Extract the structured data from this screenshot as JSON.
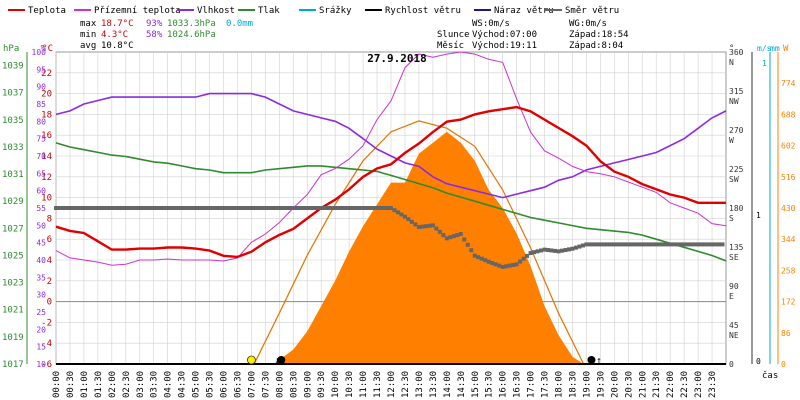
{
  "legend": [
    {
      "label": "Teplota",
      "color": "#e00000"
    },
    {
      "label": "Přízemní teplota",
      "color": "#cc33cc"
    },
    {
      "label": "Vlhkost",
      "color": "#8a2be2"
    },
    {
      "label": "Tlak",
      "color": "#2e8b2e"
    },
    {
      "label": "Srážky",
      "color": "#00aacc"
    },
    {
      "label": "Rychlost větru",
      "color": "#000000"
    },
    {
      "label": "Náraz větru",
      "color": "#1a1a8c"
    },
    {
      "label": "Směr větru",
      "color": "#666666"
    }
  ],
  "stats": {
    "max": {
      "label": "max",
      "temp": "18.7°C",
      "hum": "93%",
      "press": "1033.3hPa",
      "rain": "0.0mm"
    },
    "min": {
      "label": "min",
      "temp": "4.3°C",
      "hum": "58%",
      "press": "1024.6hPa"
    },
    "avg": {
      "label": "avg",
      "temp": "10.8°C"
    }
  },
  "wind_stats": {
    "ws": "WS:0m/s",
    "wg": "WG:0m/s"
  },
  "sun": {
    "label": "Slunce",
    "rise": "Východ:07:00",
    "set": "Západ:18:54"
  },
  "moon": {
    "label": "Měsíc",
    "rise": "Východ:19:11",
    "set": "Západ:8:04"
  },
  "colors": {
    "temp": "#e00000",
    "ground": "#cc33cc",
    "hum": "#8a2be2",
    "press": "#2e8b2e",
    "dir": "#666666",
    "solar": "#ff8000",
    "solar_line": "#e67300",
    "grid": "#d0d0d0",
    "axis_blue": "#00aacc"
  },
  "chart_data": {
    "type": "line",
    "title": "27.9.2018",
    "x_label": "čas",
    "x_ticks": [
      "00:00",
      "00:30",
      "01:00",
      "01:30",
      "02:00",
      "02:30",
      "03:00",
      "03:30",
      "04:00",
      "04:30",
      "05:00",
      "05:30",
      "06:00",
      "06:30",
      "07:00",
      "07:30",
      "08:00",
      "08:30",
      "09:00",
      "09:30",
      "10:00",
      "10:30",
      "11:00",
      "11:30",
      "12:00",
      "12:30",
      "13:00",
      "13:30",
      "14:00",
      "14:30",
      "15:00",
      "15:30",
      "16:00",
      "16:30",
      "17:00",
      "17:30",
      "18:00",
      "18:30",
      "19:00",
      "19:30",
      "20:00",
      "20:30",
      "21:00",
      "21:30",
      "22:00",
      "22:30",
      "23:00",
      "23:30"
    ],
    "axes": {
      "hpa": {
        "label": "hPa",
        "ticks": [
          "1017",
          "1019",
          "1021",
          "1023",
          "1025",
          "1027",
          "1029",
          "1031",
          "1033",
          "1035",
          "1037",
          "1039"
        ],
        "range": [
          1017,
          1040
        ]
      },
      "percent": {
        "label": "%",
        "ticks": [
          "10",
          "15",
          "20",
          "25",
          "30",
          "35",
          "40",
          "45",
          "50",
          "55",
          "60",
          "65",
          "70",
          "75",
          "80",
          "85",
          "90",
          "95",
          "100"
        ],
        "range": [
          10,
          100
        ]
      },
      "celsius": {
        "label": "°C",
        "ticks": [
          "-6",
          "-4",
          "-2",
          "0",
          "2",
          "4",
          "6",
          "8",
          "10",
          "12",
          "14",
          "16",
          "18",
          "20",
          "22"
        ],
        "range": [
          -6,
          24
        ]
      },
      "direction": {
        "label": "°",
        "ticks": [
          "0",
          "45 NE",
          "90 E",
          "135 SE",
          "180 S",
          "225 SW",
          "270 W",
          "315 NW",
          "360 N"
        ],
        "range": [
          0,
          360
        ]
      },
      "wind": {
        "label": "m/s",
        "ticks": [
          "0",
          "1"
        ]
      },
      "rain": {
        "label": "mm",
        "ticks": [
          "0",
          "1"
        ]
      },
      "solar": {
        "label": "W",
        "ticks": [
          "0",
          "86",
          "172",
          "258",
          "344",
          "430",
          "516",
          "602",
          "688",
          "774"
        ],
        "range": [
          0,
          860
        ]
      }
    },
    "series": [
      {
        "name": "Teplota",
        "unit": "°C",
        "x": [
          0,
          0.5,
          1,
          1.5,
          2,
          2.5,
          3,
          3.5,
          4,
          4.5,
          5,
          5.5,
          6,
          6.5,
          7,
          7.5,
          8,
          8.5,
          9,
          9.5,
          10,
          10.5,
          11,
          11.5,
          12,
          12.5,
          13,
          13.5,
          14,
          14.5,
          15,
          15.5,
          16,
          16.5,
          17,
          17.5,
          18,
          18.5,
          19,
          19.5,
          20,
          20.5,
          21,
          21.5,
          22,
          22.5,
          23,
          23.5,
          24
        ],
        "y": [
          7.2,
          6.8,
          6.6,
          5.8,
          5.0,
          5.0,
          5.1,
          5.1,
          5.2,
          5.2,
          5.1,
          4.9,
          4.4,
          4.3,
          4.8,
          5.7,
          6.4,
          7.0,
          8.0,
          9.0,
          9.8,
          10.8,
          12.0,
          12.8,
          13.2,
          14.3,
          15.2,
          16.3,
          17.3,
          17.5,
          18.0,
          18.3,
          18.5,
          18.7,
          18.3,
          17.5,
          16.7,
          15.9,
          15.0,
          13.5,
          12.5,
          12.0,
          11.3,
          10.8,
          10.3,
          10.0,
          9.5,
          9.5,
          9.5
        ]
      },
      {
        "name": "Přízemní teplota",
        "unit": "°C",
        "x": [
          0,
          0.5,
          1,
          1.5,
          2,
          2.5,
          3,
          3.5,
          4,
          4.5,
          5,
          5.5,
          6,
          6.5,
          7,
          7.5,
          8,
          8.5,
          9,
          9.5,
          10,
          10.5,
          11,
          11.5,
          12,
          12.5,
          13,
          13.5,
          14,
          14.5,
          15,
          15.5,
          16,
          16.5,
          17,
          17.5,
          18,
          18.5,
          19,
          19.5,
          20,
          20.5,
          21,
          21.5,
          22,
          22.5,
          23,
          23.5,
          24
        ],
        "y": [
          4.9,
          4.2,
          4.0,
          3.8,
          3.5,
          3.6,
          4.0,
          4.0,
          4.1,
          4.0,
          4.0,
          4.0,
          3.9,
          4.2,
          5.7,
          6.5,
          7.6,
          9.0,
          10.3,
          12.2,
          12.8,
          13.7,
          15.0,
          17.5,
          19.3,
          22.5,
          23.8,
          23.5,
          23.8,
          24.0,
          23.8,
          23.3,
          23.0,
          19.5,
          16.3,
          14.5,
          13.8,
          13.0,
          12.5,
          12.3,
          12.0,
          11.5,
          11.0,
          10.5,
          9.5,
          9.0,
          8.5,
          7.5,
          7.3
        ]
      },
      {
        "name": "Vlhkost",
        "unit": "%",
        "x": [
          0,
          0.5,
          1,
          1.5,
          2,
          2.5,
          3,
          3.5,
          4,
          4.5,
          5,
          5.5,
          6,
          6.5,
          7,
          7.5,
          8,
          8.5,
          9,
          9.5,
          10,
          10.5,
          11,
          11.5,
          12,
          12.5,
          13,
          13.5,
          14,
          14.5,
          15,
          15.5,
          16,
          16.5,
          17,
          17.5,
          18,
          18.5,
          19,
          19.5,
          20,
          20.5,
          21,
          21.5,
          22,
          22.5,
          23,
          23.5,
          24
        ],
        "y": [
          82,
          83,
          85,
          86,
          87,
          87,
          87,
          87,
          87,
          87,
          87,
          88,
          88,
          88,
          88,
          87,
          85,
          83,
          82,
          81,
          80,
          78,
          75,
          72,
          70,
          68,
          67,
          64,
          62,
          61,
          60,
          59,
          58,
          59,
          60,
          61,
          63,
          64,
          66,
          67,
          68,
          69,
          70,
          71,
          73,
          75,
          78,
          81,
          83
        ]
      },
      {
        "name": "Tlak",
        "unit": "hPa",
        "x": [
          0,
          0.5,
          1,
          1.5,
          2,
          2.5,
          3,
          3.5,
          4,
          4.5,
          5,
          5.5,
          6,
          6.5,
          7,
          7.5,
          8,
          8.5,
          9,
          9.5,
          10,
          10.5,
          11,
          11.5,
          12,
          12.5,
          13,
          13.5,
          14,
          14.5,
          15,
          15.5,
          16,
          16.5,
          17,
          17.5,
          18,
          18.5,
          19,
          19.5,
          20,
          20.5,
          21,
          21.5,
          22,
          22.5,
          23,
          23.5,
          24
        ],
        "y": [
          1033.3,
          1033.0,
          1032.8,
          1032.6,
          1032.4,
          1032.3,
          1032.1,
          1031.9,
          1031.8,
          1031.6,
          1031.4,
          1031.3,
          1031.1,
          1031.1,
          1031.1,
          1031.3,
          1031.4,
          1031.5,
          1031.6,
          1031.6,
          1031.5,
          1031.4,
          1031.3,
          1031.2,
          1030.9,
          1030.6,
          1030.3,
          1030.0,
          1029.6,
          1029.3,
          1029.0,
          1028.7,
          1028.4,
          1028.1,
          1027.8,
          1027.6,
          1027.4,
          1027.2,
          1027.0,
          1026.9,
          1026.8,
          1026.7,
          1026.5,
          1026.2,
          1025.9,
          1025.6,
          1025.3,
          1025.0,
          1024.6
        ]
      },
      {
        "name": "Směr větru",
        "unit": "°",
        "x": [
          0,
          1,
          2,
          3,
          4,
          5,
          6,
          7,
          8,
          9,
          10,
          11,
          12,
          12.5,
          13,
          13.5,
          14,
          14.5,
          15,
          15.5,
          16,
          16.5,
          17,
          17.5,
          18,
          18.5,
          19,
          19.5,
          20,
          21,
          22,
          23,
          24
        ],
        "y": [
          180,
          180,
          180,
          180,
          180,
          180,
          180,
          180,
          180,
          180,
          180,
          180,
          180,
          170,
          158,
          160,
          145,
          150,
          125,
          118,
          112,
          115,
          128,
          132,
          130,
          133,
          138,
          138,
          138,
          138,
          138,
          138,
          138
        ]
      },
      {
        "name": "Slunce",
        "unit": "W",
        "x": [
          7.8,
          8.5,
          9,
          9.5,
          10,
          10.5,
          11,
          11.5,
          12,
          12.5,
          13,
          13.5,
          14,
          14.5,
          15,
          15.5,
          16,
          16.5,
          17,
          17.5,
          18,
          18.5,
          18.9
        ],
        "y": [
          0,
          40,
          90,
          160,
          230,
          310,
          380,
          440,
          500,
          500,
          580,
          610,
          640,
          610,
          560,
          480,
          430,
          360,
          270,
          160,
          80,
          20,
          0
        ]
      },
      {
        "name": "Slunce max",
        "unit": "W",
        "x": [
          7.1,
          8,
          9,
          10,
          11,
          12,
          13,
          14,
          15,
          16,
          17,
          18,
          18.9
        ],
        "y": [
          0,
          140,
          300,
          440,
          560,
          640,
          670,
          650,
          600,
          480,
          320,
          140,
          0
        ]
      }
    ]
  }
}
